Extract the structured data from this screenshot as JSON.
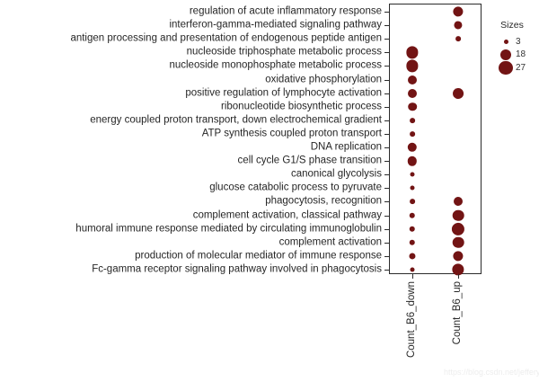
{
  "watermark": "https://blog.csdn.net/jeffery0207",
  "chart_data": {
    "type": "scatter",
    "subtype": "dot-size-plot (GO enrichment bubble chart)",
    "title": "",
    "xlabel": "",
    "ylabel": "",
    "grid": false,
    "x_categories": [
      "Count_B6_down",
      "Count_B6_up"
    ],
    "y_categories": [
      "regulation of acute inflammatory response",
      "interferon-gamma-mediated signaling pathway",
      "antigen processing and presentation of endogenous peptide antigen",
      "nucleoside triphosphate metabolic process",
      "nucleoside monophosphate metabolic process",
      "oxidative phosphorylation",
      "positive regulation of lymphocyte activation",
      "ribonucleotide biosynthetic process",
      "energy coupled proton transport, down electrochemical gradient",
      "ATP synthesis coupled proton transport",
      "DNA replication",
      "cell cycle G1/S phase transition",
      "canonical glycolysis",
      "glucose catabolic process to pyruvate",
      "phagocytosis, recognition",
      "complement activation, classical pathway",
      "humoral immune response mediated by circulating immunoglobulin",
      "complement activation",
      "production of molecular mediator of immune response",
      "Fc-gamma receptor signaling pathway involved in phagocytosis"
    ],
    "series": [
      {
        "name": "Count_B6_down",
        "values": [
          null,
          null,
          null,
          21,
          21,
          12,
          12,
          11,
          4,
          4,
          13,
          13,
          3,
          3,
          4,
          5,
          5,
          5,
          6,
          3
        ]
      },
      {
        "name": "Count_B6_up",
        "values": [
          15,
          10,
          4,
          null,
          null,
          null,
          17,
          null,
          null,
          null,
          null,
          null,
          null,
          null,
          12,
          19,
          24,
          19,
          15,
          21
        ]
      }
    ],
    "legend": {
      "title": "Sizes",
      "entries": [
        3,
        18,
        27
      ],
      "position": "right"
    },
    "style": {
      "dot_color": "#721414",
      "size_scale": "dot area proportional to count value"
    }
  }
}
